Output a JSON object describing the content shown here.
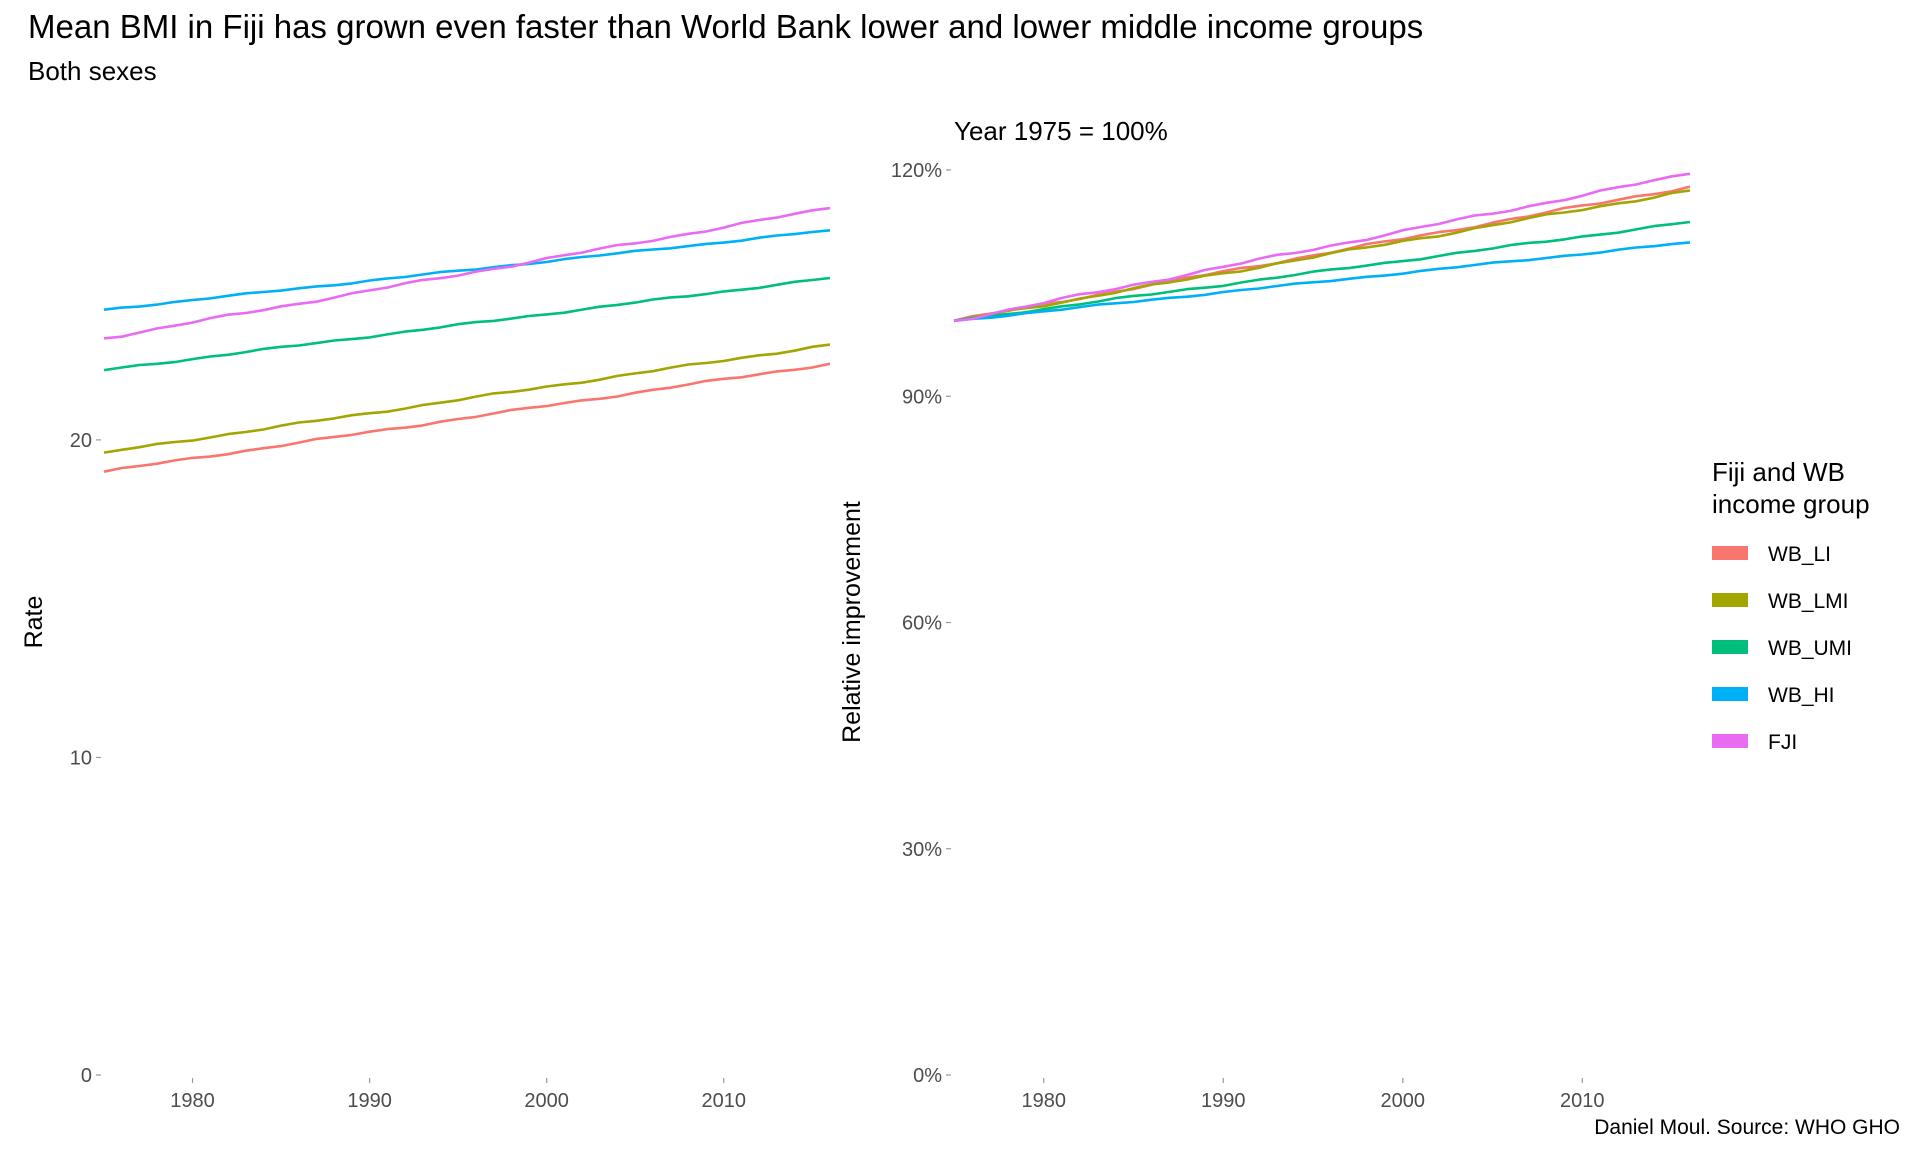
{
  "title": "Mean BMI in Fiji has grown even faster than World Bank lower and lower middle income groups",
  "subtitle": "Both sexes",
  "caption": "Daniel Moul. Source: WHO GHO",
  "legend": {
    "title_line1": "Fiji and WB",
    "title_line2": "income group",
    "position": "right"
  },
  "colors": {
    "WB_LI": "#F8766D",
    "WB_LMI": "#A3A500",
    "WB_UMI": "#00BF7D",
    "WB_HI": "#00B0F6",
    "FJI": "#E76BF3"
  },
  "chart_data": [
    {
      "type": "line",
      "xlabel": "",
      "ylabel": "Rate",
      "xlim": [
        1975,
        2016
      ],
      "ylim": [
        0,
        28.5
      ],
      "xticks": [
        1980,
        1990,
        2000,
        2010
      ],
      "yticks": [
        0,
        10,
        20
      ],
      "ytick_labels": [
        "0",
        "10",
        "20"
      ],
      "grid": false,
      "series": [
        {
          "name": "WB_LI",
          "x_start": 1975,
          "x_end": 2016,
          "y_start": 19.0,
          "y_end": 22.4
        },
        {
          "name": "WB_LMI",
          "x_start": 1975,
          "x_end": 2016,
          "y_start": 19.6,
          "y_end": 23.0
        },
        {
          "name": "WB_UMI",
          "x_start": 1975,
          "x_end": 2016,
          "y_start": 22.2,
          "y_end": 25.1
        },
        {
          "name": "WB_HI",
          "x_start": 1975,
          "x_end": 2016,
          "y_start": 24.1,
          "y_end": 26.6
        },
        {
          "name": "FJI",
          "x_start": 1975,
          "x_end": 2016,
          "y_start": 23.2,
          "y_end": 27.3
        }
      ]
    },
    {
      "type": "line",
      "subtitle": "Year 1975 = 100%",
      "xlabel": "",
      "ylabel": "Relative improvement",
      "xlim": [
        1975,
        2016
      ],
      "ylim": [
        0,
        1.2
      ],
      "xticks": [
        1980,
        1990,
        2000,
        2010
      ],
      "yticks": [
        0,
        0.3,
        0.6,
        0.9,
        1.2
      ],
      "ytick_labels": [
        "0%",
        "30%",
        "60%",
        "90%",
        "120%"
      ],
      "grid": false,
      "series": [
        {
          "name": "WB_LI",
          "x_start": 1975,
          "x_end": 2016,
          "y_start": 1.0,
          "y_end": 1.178
        },
        {
          "name": "WB_LMI",
          "x_start": 1975,
          "x_end": 2016,
          "y_start": 1.0,
          "y_end": 1.173
        },
        {
          "name": "WB_UMI",
          "x_start": 1975,
          "x_end": 2016,
          "y_start": 1.0,
          "y_end": 1.131
        },
        {
          "name": "WB_HI",
          "x_start": 1975,
          "x_end": 2016,
          "y_start": 1.0,
          "y_end": 1.104
        },
        {
          "name": "FJI",
          "x_start": 1975,
          "x_end": 2016,
          "y_start": 1.0,
          "y_end": 1.195
        }
      ]
    }
  ]
}
